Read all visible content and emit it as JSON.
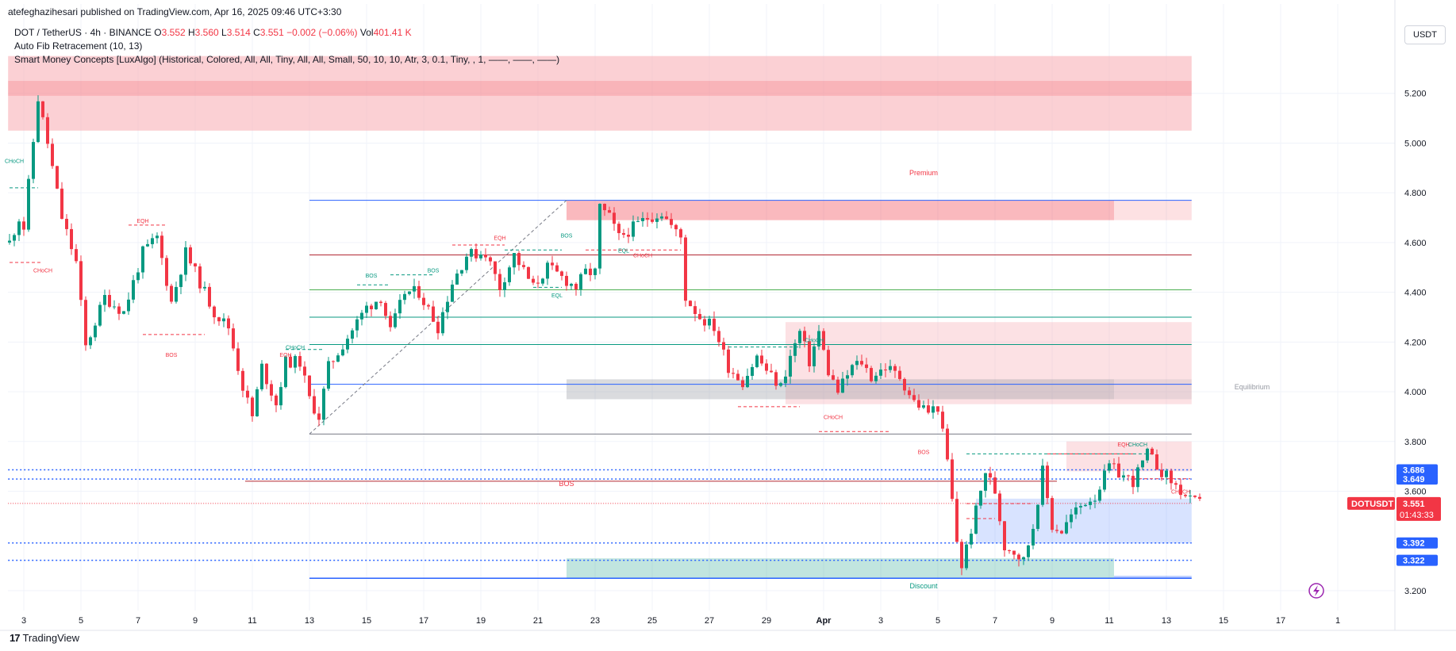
{
  "header": {
    "publisher": "atefeghazihesari published on TradingView.com, Apr 16, 2025 09:46 UTC+3:30",
    "symbol": "DOT / TetherUS · 4h · BINANCE",
    "ohlc": [
      {
        "k": "O",
        "v": "3.552"
      },
      {
        "k": "H",
        "v": "3.560"
      },
      {
        "k": "L",
        "v": "3.514"
      },
      {
        "k": "C",
        "v": "3.551"
      },
      {
        "k": "",
        "v": "−0.002 (−0.06%)"
      }
    ],
    "vol_label": "Vol",
    "vol_value": "401.41 K",
    "indicator1": "Auto Fib Retracement (10, 13)",
    "indicator2": "Smart Money Concepts [LuxAlgo] (Historical, Colored, All, All, Tiny, All, All, Small, 50, 10, 10, Atr, 3, 0.1, Tiny, , 1, ——, ——, ——)",
    "currency": "USDT"
  },
  "footer": {
    "brand": "TradingView"
  },
  "colors": {
    "up": "#089981",
    "down": "#f23645",
    "grid": "#f0f3fa",
    "axis_text": "#131722",
    "blue_level": "#2962ff",
    "supply": "#f7a9b1",
    "demand": "#b2dfd0"
  },
  "chart_data": {
    "type": "candlestick",
    "y_axis": {
      "min": 3.12,
      "max": 5.4,
      "ticks": [
        "5.200",
        "5.000",
        "4.800",
        "4.600",
        "4.400",
        "4.200",
        "4.000",
        "3.800",
        "3.600",
        "3.200"
      ]
    },
    "x_axis": {
      "ticks": [
        {
          "label": "3",
          "idx": 3
        },
        {
          "label": "5",
          "idx": 15
        },
        {
          "label": "7",
          "idx": 27
        },
        {
          "label": "9",
          "idx": 39
        },
        {
          "label": "11",
          "idx": 51
        },
        {
          "label": "13",
          "idx": 63
        },
        {
          "label": "15",
          "idx": 75
        },
        {
          "label": "17",
          "idx": 87
        },
        {
          "label": "19",
          "idx": 99
        },
        {
          "label": "21",
          "idx": 111
        },
        {
          "label": "23",
          "idx": 123
        },
        {
          "label": "25",
          "idx": 135
        },
        {
          "label": "27",
          "idx": 147
        },
        {
          "label": "29",
          "idx": 159
        },
        {
          "label": "Apr",
          "idx": 171
        },
        {
          "label": "3",
          "idx": 183
        },
        {
          "label": "5",
          "idx": 195
        },
        {
          "label": "7",
          "idx": 207
        },
        {
          "label": "9",
          "idx": 219
        },
        {
          "label": "11",
          "idx": 231
        },
        {
          "label": "13",
          "idx": 243
        },
        {
          "label": "15",
          "idx": 255
        },
        {
          "label": "17",
          "idx": 267
        },
        {
          "label": "1",
          "idx": 279
        }
      ]
    },
    "anchors": [
      [
        0,
        4.6
      ],
      [
        2,
        4.7
      ],
      [
        3,
        4.66
      ],
      [
        6,
        5.18
      ],
      [
        8,
        5.0
      ],
      [
        11,
        4.7
      ],
      [
        14,
        4.52
      ],
      [
        16,
        4.18
      ],
      [
        20,
        4.38
      ],
      [
        24,
        4.32
      ],
      [
        28,
        4.56
      ],
      [
        31,
        4.62
      ],
      [
        34,
        4.36
      ],
      [
        37,
        4.56
      ],
      [
        40,
        4.44
      ],
      [
        43,
        4.32
      ],
      [
        46,
        4.26
      ],
      [
        49,
        4.02
      ],
      [
        51,
        3.9
      ],
      [
        53,
        4.1
      ],
      [
        56,
        3.95
      ],
      [
        58,
        4.12
      ],
      [
        61,
        4.12
      ],
      [
        63,
        3.97
      ],
      [
        65,
        3.9
      ],
      [
        67,
        4.1
      ],
      [
        71,
        4.22
      ],
      [
        75,
        4.34
      ],
      [
        78,
        4.38
      ],
      [
        80,
        4.24
      ],
      [
        83,
        4.4
      ],
      [
        86,
        4.4
      ],
      [
        90,
        4.26
      ],
      [
        93,
        4.44
      ],
      [
        96,
        4.55
      ],
      [
        100,
        4.56
      ],
      [
        103,
        4.42
      ],
      [
        106,
        4.55
      ],
      [
        110,
        4.42
      ],
      [
        113,
        4.5
      ],
      [
        116,
        4.46
      ],
      [
        119,
        4.42
      ],
      [
        121,
        4.48
      ],
      [
        123,
        4.48
      ],
      [
        124,
        4.74
      ],
      [
        126,
        4.7
      ],
      [
        128,
        4.62
      ],
      [
        131,
        4.66
      ],
      [
        134,
        4.7
      ],
      [
        137,
        4.72
      ],
      [
        140,
        4.64
      ],
      [
        141,
        4.62
      ],
      [
        142,
        4.38
      ],
      [
        145,
        4.3
      ],
      [
        148,
        4.26
      ],
      [
        151,
        4.1
      ],
      [
        154,
        4.04
      ],
      [
        157,
        4.14
      ],
      [
        160,
        4.06
      ],
      [
        162,
        4.02
      ],
      [
        164,
        4.14
      ],
      [
        166,
        4.24
      ],
      [
        168,
        4.12
      ],
      [
        170,
        4.24
      ],
      [
        172,
        4.08
      ],
      [
        174,
        4.0
      ],
      [
        177,
        4.1
      ],
      [
        179,
        4.12
      ],
      [
        181,
        4.06
      ],
      [
        184,
        4.1
      ],
      [
        187,
        4.06
      ],
      [
        190,
        3.96
      ],
      [
        193,
        3.92
      ],
      [
        195,
        3.94
      ],
      [
        197,
        3.72
      ],
      [
        199,
        3.4
      ],
      [
        200,
        3.3
      ],
      [
        203,
        3.52
      ],
      [
        205,
        3.68
      ],
      [
        207,
        3.6
      ],
      [
        209,
        3.38
      ],
      [
        211,
        3.36
      ],
      [
        213,
        3.32
      ],
      [
        215,
        3.46
      ],
      [
        217,
        3.68
      ],
      [
        219,
        3.46
      ],
      [
        221,
        3.44
      ],
      [
        223,
        3.5
      ],
      [
        226,
        3.56
      ],
      [
        228,
        3.58
      ],
      [
        231,
        3.7
      ],
      [
        234,
        3.66
      ],
      [
        236,
        3.64
      ],
      [
        239,
        3.75
      ],
      [
        242,
        3.68
      ],
      [
        245,
        3.62
      ],
      [
        248,
        3.56
      ],
      [
        250,
        3.55
      ]
    ],
    "last_price": {
      "label": "DOTUSDT",
      "value": "3.551",
      "countdown": "01:43:33"
    },
    "price_badges": [
      {
        "value": "3.686"
      },
      {
        "value": "3.649"
      },
      {
        "value": "3.392"
      },
      {
        "value": "3.322"
      }
    ],
    "annotations": [
      {
        "text": "CHoCH",
        "idx": 1,
        "price": 4.92
      },
      {
        "text": "CHoCH",
        "idx": 7,
        "price": 4.48
      },
      {
        "text": "EQH",
        "idx": 28,
        "price": 4.68
      },
      {
        "text": "BOS",
        "idx": 34,
        "price": 4.14
      },
      {
        "text": "CHoCH",
        "idx": 60,
        "price": 4.17
      },
      {
        "text": "EQH",
        "idx": 58,
        "price": 4.14
      },
      {
        "text": "BOS",
        "idx": 76,
        "price": 4.46
      },
      {
        "text": "BOS",
        "idx": 89,
        "price": 4.48
      },
      {
        "text": "EQH",
        "idx": 103,
        "price": 4.61
      },
      {
        "text": "BOS",
        "idx": 117,
        "price": 4.62
      },
      {
        "text": "EQL",
        "idx": 115,
        "price": 4.38
      },
      {
        "text": "EQL",
        "idx": 129,
        "price": 4.56
      },
      {
        "text": "CHoCH",
        "idx": 133,
        "price": 4.54
      },
      {
        "text": "CHoCH",
        "idx": 169,
        "price": 4.2
      },
      {
        "text": "CHoCH",
        "idx": 173,
        "price": 3.89
      },
      {
        "text": "BOS",
        "idx": 192,
        "price": 3.75
      },
      {
        "text": "EQH",
        "idx": 234,
        "price": 3.78
      },
      {
        "text": "CHoCH",
        "idx": 237,
        "price": 3.78
      },
      {
        "text": "CHoCH",
        "idx": 246,
        "price": 3.59
      },
      {
        "text": "BOS",
        "idx": 117,
        "price": 3.62
      }
    ],
    "zone_labels": [
      {
        "text": "Premium",
        "idx": 192,
        "price": 4.87
      },
      {
        "text": "Equilibrium",
        "idx": 261,
        "price": 4.01
      },
      {
        "text": "Discount",
        "idx": 192,
        "price": 3.21
      }
    ],
    "grid": true
  }
}
